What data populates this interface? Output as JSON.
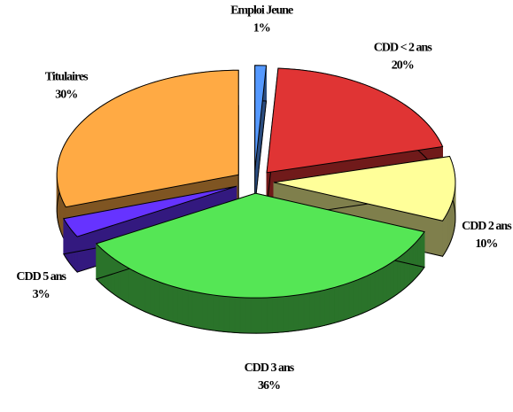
{
  "chart_data": {
    "type": "pie",
    "categories": [
      "Emploi Jeune",
      "CDD < 2 ans",
      "CDD 2 ans",
      "CDD 3 ans",
      "CDD 5 ans",
      "Titulaires"
    ],
    "values": [
      1,
      20,
      10,
      36,
      3,
      30
    ],
    "value_labels": [
      "1%",
      "20%",
      "10%",
      "36%",
      "3%",
      "30%"
    ],
    "colors": [
      "#5599ff",
      "#e03434",
      "#ffff99",
      "#55e655",
      "#6633ff",
      "#ffaa44"
    ]
  }
}
